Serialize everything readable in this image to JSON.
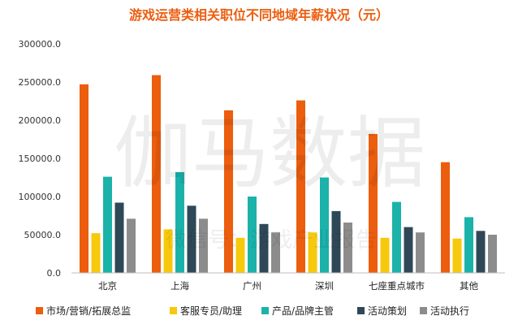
{
  "chart_data": {
    "type": "bar",
    "title": "游戏运营类相关职位不同地域年薪状况（元）",
    "categories": [
      "北京",
      "上海",
      "广州",
      "深圳",
      "七座重点城市",
      "其他"
    ],
    "ylim": [
      0,
      300000
    ],
    "y_ticks": [
      "0.0",
      "50000.0",
      "100000.0",
      "150000.0",
      "200000.0",
      "250000.0",
      "300000.0"
    ],
    "grid": false,
    "legend_position": "bottom",
    "series": [
      {
        "name": "市场/营销/拓展总监",
        "color": "#EC5D0E",
        "values": [
          247000,
          259000,
          213000,
          226000,
          182000,
          145000
        ]
      },
      {
        "name": "客服专员/助理",
        "color": "#F7C90C",
        "values": [
          52000,
          57000,
          46000,
          53000,
          46000,
          45000
        ]
      },
      {
        "name": "产品/品牌主管",
        "color": "#1BB2AA",
        "values": [
          126000,
          132000,
          100000,
          125000,
          93000,
          73000
        ]
      },
      {
        "name": "活动策划",
        "color": "#2F4858",
        "values": [
          92000,
          88000,
          64000,
          81000,
          60000,
          55000
        ]
      },
      {
        "name": "活动执行",
        "color": "#8C8C8C",
        "values": [
          71000,
          71000,
          53000,
          66000,
          53000,
          50000
        ]
      }
    ],
    "title_color": "#EC5D0E"
  },
  "watermark": {
    "main": "伽马数据",
    "sub": "微信号：游戏产业报告"
  }
}
